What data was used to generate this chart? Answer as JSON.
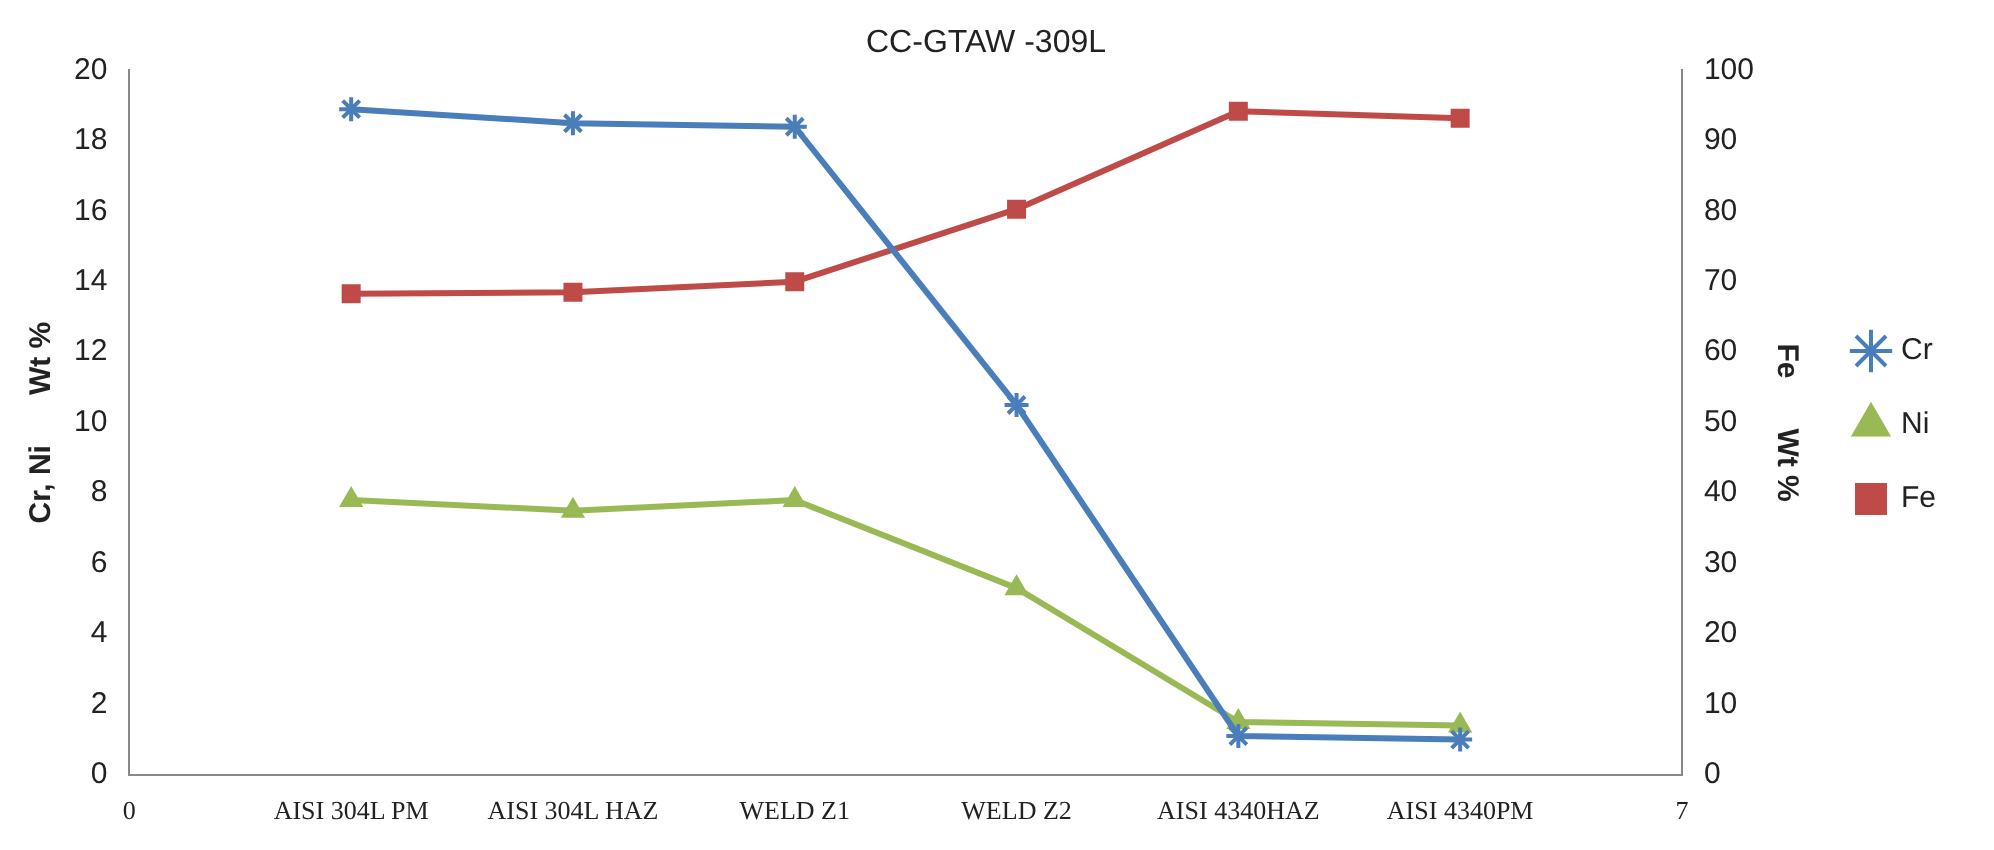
{
  "chart_data": {
    "type": "line",
    "title": "CC-GTAW -309L",
    "ylabel": "Cr, Ni      Wt %",
    "y2label": "Fe      Wt %",
    "xlim": [
      0,
      7
    ],
    "xticks": [
      0,
      {
        "value": 1,
        "label": "AISI 304L PM"
      },
      {
        "value": 2,
        "label": "AISI 304L HAZ"
      },
      {
        "value": 3,
        "label": "WELD Z1"
      },
      {
        "value": 4,
        "label": "WELD Z2"
      },
      {
        "value": 5,
        "label": "AISI 4340HAZ"
      },
      {
        "value": 6,
        "label": "AISI 4340PM"
      },
      7
    ],
    "ylim": [
      0,
      20
    ],
    "yticks": [
      0,
      2,
      4,
      6,
      8,
      10,
      12,
      14,
      16,
      18,
      20
    ],
    "y2lim": [
      0,
      100
    ],
    "y2ticks": [
      0,
      10,
      20,
      30,
      40,
      50,
      60,
      70,
      80,
      90,
      100
    ],
    "grid": false,
    "legend": "right",
    "series": [
      {
        "name": "Cr",
        "color": "#4a7ebb",
        "x": [
          1,
          2,
          3,
          4,
          5,
          6
        ],
        "values": [
          18.9,
          18.5,
          18.4,
          10.5,
          1.1,
          1.0
        ],
        "marker": "cross"
      },
      {
        "name": "Ni",
        "color": "#98b954",
        "x": [
          1,
          2,
          3,
          4,
          5,
          6
        ],
        "values": [
          7.8,
          7.5,
          7.8,
          5.3,
          1.5,
          1.4
        ],
        "marker": "triangle"
      },
      {
        "name": "Fe",
        "color": "#be4b48",
        "x": [
          1,
          2,
          3,
          4,
          5,
          6
        ],
        "values": [
          68.3,
          68.5,
          70.0,
          80.3,
          94.2,
          93.2
        ],
        "marker": "square",
        "axis": "y2"
      }
    ]
  }
}
